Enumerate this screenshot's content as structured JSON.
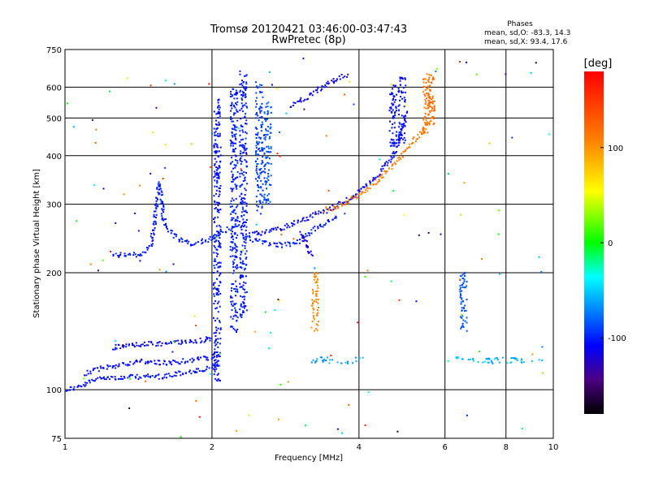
{
  "chart_data": {
    "type": "scatter",
    "title": "Tromsø 20120421 03:46:00-03:47:43",
    "subtitle": "RwPretec (8p)",
    "xlabel": "Frequency [MHz]",
    "ylabel": "Stationary phase Virtual Height [km]",
    "x_scale": "log",
    "y_scale": "log",
    "xlim": [
      1,
      10
    ],
    "ylim": [
      75,
      750
    ],
    "grid": true,
    "x_ticks": [
      "1",
      "2",
      "4",
      "6",
      "8",
      "10"
    ],
    "y_ticks": [
      "75",
      "100",
      "200",
      "300",
      "400",
      "500",
      "600",
      "750"
    ],
    "phases": {
      "title": "Phases",
      "o_stats": "mean, sd,O:  -83.3,  14.3",
      "x_stats": "mean, sd,X:   93.4,  17.6"
    },
    "colorbar": {
      "label": "[deg]",
      "range": [
        -180,
        180
      ],
      "ticks": [
        "100",
        "0",
        "-100"
      ],
      "tick_values": [
        100,
        0,
        -100
      ]
    },
    "traces": [
      {
        "kind": "curve",
        "phase": -105,
        "x": [
          1.0,
          1.08,
          1.15,
          1.2,
          1.3,
          1.4,
          1.5,
          1.6,
          1.7,
          1.8,
          1.9,
          2.0,
          2.08
        ],
        "y": [
          100,
          102,
          106,
          108,
          107,
          108,
          108,
          108,
          110,
          111,
          112,
          114,
          118
        ]
      },
      {
        "kind": "curve",
        "phase": -108,
        "x": [
          1.1,
          1.2,
          1.3,
          1.4,
          1.5,
          1.6,
          1.7,
          1.8,
          1.9,
          2.0,
          2.1
        ],
        "y": [
          110,
          114,
          116,
          118,
          118,
          117,
          118,
          119,
          120,
          121,
          123
        ]
      },
      {
        "kind": "curve",
        "phase": -110,
        "x": [
          1.25,
          1.35,
          1.45,
          1.55,
          1.65,
          1.75,
          1.85,
          1.95,
          2.0
        ],
        "y": [
          128,
          130,
          131,
          131,
          132,
          133,
          133,
          135,
          136
        ]
      },
      {
        "kind": "curve",
        "phase": -102,
        "x": [
          1.25,
          1.3,
          1.4,
          1.45,
          1.5,
          1.52,
          1.54,
          1.56,
          1.6,
          1.7,
          1.8,
          1.9,
          2.0,
          2.05,
          2.1,
          2.2,
          2.3
        ],
        "y": [
          222,
          222,
          222,
          225,
          235,
          260,
          300,
          340,
          265,
          245,
          238,
          240,
          245,
          250,
          255,
          262,
          270
        ]
      },
      {
        "kind": "curve",
        "phase": -100,
        "x": [
          2.3,
          2.45,
          2.6,
          2.8,
          3.0,
          3.2,
          3.4,
          3.6
        ],
        "y": [
          250,
          242,
          238,
          235,
          240,
          255,
          268,
          280
        ]
      },
      {
        "kind": "curve",
        "phase": -110,
        "x": [
          2.4,
          2.6,
          2.8,
          3.0,
          3.2,
          3.5,
          3.8,
          4.1,
          4.4,
          4.7,
          4.9,
          5.0
        ],
        "y": [
          250,
          255,
          262,
          270,
          280,
          292,
          308,
          330,
          360,
          400,
          460,
          520
        ]
      },
      {
        "kind": "curve",
        "phase": -112,
        "x": [
          2.9,
          3.1,
          3.3,
          3.5,
          3.8
        ],
        "y": [
          540,
          560,
          590,
          620,
          650
        ]
      },
      {
        "kind": "curve",
        "phase": -120,
        "x": [
          3.05,
          3.1,
          3.15,
          3.2
        ],
        "y": [
          255,
          240,
          228,
          220
        ]
      },
      {
        "kind": "curve",
        "phase": 110,
        "x": [
          3.4,
          3.6,
          3.8,
          4.0,
          4.3,
          4.6,
          4.9,
          5.2,
          5.5,
          5.7
        ],
        "y": [
          290,
          296,
          305,
          318,
          340,
          370,
          400,
          440,
          480,
          510
        ]
      },
      {
        "kind": "vband",
        "phase": -105,
        "x": 2.05,
        "y": [
          105,
          560
        ]
      },
      {
        "kind": "vband",
        "phase": -100,
        "x": 2.22,
        "y": [
          140,
          600
        ]
      },
      {
        "kind": "vband",
        "phase": -102,
        "x": 2.32,
        "y": [
          150,
          650
        ]
      },
      {
        "kind": "vband",
        "phase": -92,
        "x": 2.5,
        "y": [
          280,
          620
        ]
      },
      {
        "kind": "vband",
        "phase": -85,
        "x": 2.6,
        "y": [
          300,
          550
        ]
      },
      {
        "kind": "vband",
        "phase": -108,
        "x": 4.7,
        "y": [
          420,
          620
        ]
      },
      {
        "kind": "vband",
        "phase": -106,
        "x": 4.9,
        "y": [
          430,
          640
        ]
      },
      {
        "kind": "vband",
        "phase": 105,
        "x": 3.25,
        "y": [
          140,
          200
        ]
      },
      {
        "kind": "vband",
        "phase": 115,
        "x": 5.5,
        "y": [
          450,
          650
        ]
      },
      {
        "kind": "vband",
        "phase": 118,
        "x": 5.62,
        "y": [
          480,
          650
        ]
      },
      {
        "kind": "vband",
        "phase": -85,
        "x": 6.55,
        "y": [
          140,
          200
        ]
      },
      {
        "kind": "hband",
        "phase": -65,
        "x": [
          3.2,
          4.1
        ],
        "y": 119
      },
      {
        "kind": "hband",
        "phase": -55,
        "x": [
          6.3,
          9.5
        ],
        "y": 119
      }
    ]
  }
}
